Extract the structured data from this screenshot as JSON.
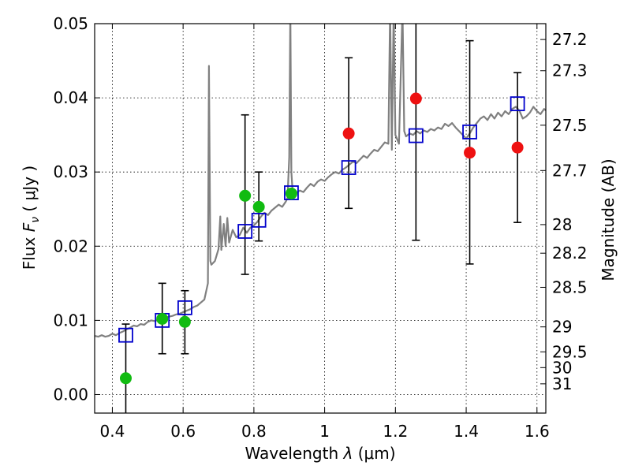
{
  "chart_data": {
    "type": "scatter",
    "xlabel_prefix": "Wavelength",
    "xlabel_symbol": "λ",
    "xlabel_unit": "(μm)",
    "ylabel_prefix": "Flux",
    "ylabel_symbol": "F",
    "ylabel_sub": "ν",
    "ylabel_unit": "( μJy )",
    "y2label": "Magnitude (AB)",
    "xlim": [
      0.35,
      1.625
    ],
    "ylim": [
      -0.0025,
      0.05
    ],
    "x_ticks": [
      {
        "value": 0.4,
        "label": "0.4"
      },
      {
        "value": 0.6,
        "label": "0.6"
      },
      {
        "value": 0.8,
        "label": "0.8"
      },
      {
        "value": 1.0,
        "label": "1"
      },
      {
        "value": 1.2,
        "label": "1.2"
      },
      {
        "value": 1.4,
        "label": "1.4"
      },
      {
        "value": 1.6,
        "label": "1.6"
      }
    ],
    "y_ticks": [
      {
        "value": 0.0,
        "label": "0.00"
      },
      {
        "value": 0.01,
        "label": "0.01"
      },
      {
        "value": 0.02,
        "label": "0.02"
      },
      {
        "value": 0.03,
        "label": "0.03"
      },
      {
        "value": 0.04,
        "label": "0.04"
      },
      {
        "value": 0.05,
        "label": "0.05"
      }
    ],
    "mag_ticks": [
      {
        "value": 27.2,
        "label": "27.2"
      },
      {
        "value": 27.3,
        "label": "27.3"
      },
      {
        "value": 27.5,
        "label": "27.5"
      },
      {
        "value": 27.7,
        "label": "27.7"
      },
      {
        "value": 28,
        "label": "28"
      },
      {
        "value": 28.2,
        "label": "28.2"
      },
      {
        "value": 28.5,
        "label": "28.5"
      },
      {
        "value": 29,
        "label": "29"
      },
      {
        "value": 29.5,
        "label": "29.5"
      },
      {
        "value": 30,
        "label": "30"
      },
      {
        "value": 31,
        "label": "31"
      }
    ],
    "grid": true,
    "colors": {
      "model": "#808080",
      "squares": "#0000cc",
      "green": "#11bb11",
      "red": "#ee1111",
      "errorbar": "#000000"
    },
    "model_spectrum": [
      [
        0.35,
        0.0079
      ],
      [
        0.36,
        0.0078
      ],
      [
        0.37,
        0.008
      ],
      [
        0.38,
        0.0078
      ],
      [
        0.39,
        0.0079
      ],
      [
        0.4,
        0.0082
      ],
      [
        0.41,
        0.008
      ],
      [
        0.42,
        0.0083
      ],
      [
        0.43,
        0.0085
      ],
      [
        0.44,
        0.0088
      ],
      [
        0.45,
        0.009
      ],
      [
        0.46,
        0.0093
      ],
      [
        0.47,
        0.0092
      ],
      [
        0.48,
        0.0095
      ],
      [
        0.49,
        0.0094
      ],
      [
        0.5,
        0.0098
      ],
      [
        0.51,
        0.01
      ],
      [
        0.52,
        0.0099
      ],
      [
        0.53,
        0.0101
      ],
      [
        0.54,
        0.0102
      ],
      [
        0.55,
        0.0104
      ],
      [
        0.56,
        0.0105
      ],
      [
        0.57,
        0.0106
      ],
      [
        0.58,
        0.0108
      ],
      [
        0.59,
        0.0109
      ],
      [
        0.6,
        0.0111
      ],
      [
        0.61,
        0.0113
      ],
      [
        0.62,
        0.0115
      ],
      [
        0.63,
        0.0118
      ],
      [
        0.64,
        0.012
      ],
      [
        0.65,
        0.0124
      ],
      [
        0.66,
        0.0128
      ],
      [
        0.67,
        0.015
      ],
      [
        0.673,
        0.0443
      ],
      [
        0.677,
        0.018
      ],
      [
        0.68,
        0.0175
      ],
      [
        0.69,
        0.018
      ],
      [
        0.7,
        0.0196
      ],
      [
        0.705,
        0.024
      ],
      [
        0.708,
        0.0195
      ],
      [
        0.715,
        0.023
      ],
      [
        0.72,
        0.02
      ],
      [
        0.725,
        0.0238
      ],
      [
        0.73,
        0.0205
      ],
      [
        0.74,
        0.0222
      ],
      [
        0.75,
        0.0212
      ],
      [
        0.76,
        0.0215
      ],
      [
        0.77,
        0.0225
      ],
      [
        0.78,
        0.0218
      ],
      [
        0.79,
        0.0225
      ],
      [
        0.8,
        0.0228
      ],
      [
        0.81,
        0.0233
      ],
      [
        0.82,
        0.024
      ],
      [
        0.83,
        0.0245
      ],
      [
        0.84,
        0.0242
      ],
      [
        0.85,
        0.0248
      ],
      [
        0.86,
        0.0252
      ],
      [
        0.87,
        0.0256
      ],
      [
        0.88,
        0.0253
      ],
      [
        0.89,
        0.026
      ],
      [
        0.895,
        0.0265
      ],
      [
        0.9,
        0.032
      ],
      [
        0.903,
        0.052
      ],
      [
        0.906,
        0.03
      ],
      [
        0.91,
        0.027
      ],
      [
        0.92,
        0.0272
      ],
      [
        0.93,
        0.0275
      ],
      [
        0.94,
        0.0273
      ],
      [
        0.95,
        0.0279
      ],
      [
        0.96,
        0.0284
      ],
      [
        0.97,
        0.0281
      ],
      [
        0.98,
        0.0287
      ],
      [
        0.99,
        0.029
      ],
      [
        1.0,
        0.0288
      ],
      [
        1.01,
        0.0293
      ],
      [
        1.02,
        0.0297
      ],
      [
        1.03,
        0.03
      ],
      [
        1.04,
        0.0298
      ],
      [
        1.05,
        0.0303
      ],
      [
        1.06,
        0.0306
      ],
      [
        1.07,
        0.031
      ],
      [
        1.08,
        0.0314
      ],
      [
        1.09,
        0.0312
      ],
      [
        1.1,
        0.0317
      ],
      [
        1.11,
        0.0322
      ],
      [
        1.12,
        0.0319
      ],
      [
        1.13,
        0.0325
      ],
      [
        1.14,
        0.033
      ],
      [
        1.15,
        0.0328
      ],
      [
        1.16,
        0.0334
      ],
      [
        1.17,
        0.034
      ],
      [
        1.18,
        0.0338
      ],
      [
        1.185,
        0.052
      ],
      [
        1.19,
        0.033
      ],
      [
        1.195,
        0.052
      ],
      [
        1.2,
        0.035
      ],
      [
        1.21,
        0.0338
      ],
      [
        1.22,
        0.052
      ],
      [
        1.225,
        0.0355
      ],
      [
        1.23,
        0.0348
      ],
      [
        1.24,
        0.0352
      ],
      [
        1.25,
        0.035
      ],
      [
        1.26,
        0.0355
      ],
      [
        1.27,
        0.0352
      ],
      [
        1.28,
        0.0356
      ],
      [
        1.29,
        0.0354
      ],
      [
        1.3,
        0.0358
      ],
      [
        1.31,
        0.0356
      ],
      [
        1.32,
        0.036
      ],
      [
        1.33,
        0.0358
      ],
      [
        1.34,
        0.0365
      ],
      [
        1.35,
        0.0362
      ],
      [
        1.36,
        0.0366
      ],
      [
        1.37,
        0.036
      ],
      [
        1.38,
        0.0355
      ],
      [
        1.39,
        0.035
      ],
      [
        1.4,
        0.0345
      ],
      [
        1.41,
        0.0352
      ],
      [
        1.42,
        0.036
      ],
      [
        1.43,
        0.0366
      ],
      [
        1.44,
        0.0372
      ],
      [
        1.45,
        0.0375
      ],
      [
        1.46,
        0.037
      ],
      [
        1.47,
        0.0378
      ],
      [
        1.48,
        0.0372
      ],
      [
        1.49,
        0.038
      ],
      [
        1.5,
        0.0375
      ],
      [
        1.51,
        0.0382
      ],
      [
        1.52,
        0.0378
      ],
      [
        1.53,
        0.0385
      ],
      [
        1.54,
        0.0388
      ],
      [
        1.55,
        0.0383
      ],
      [
        1.56,
        0.0372
      ],
      [
        1.57,
        0.0375
      ],
      [
        1.58,
        0.038
      ],
      [
        1.59,
        0.0388
      ],
      [
        1.6,
        0.0382
      ],
      [
        1.61,
        0.0378
      ],
      [
        1.62,
        0.0385
      ],
      [
        1.625,
        0.0383
      ]
    ],
    "errorbars": [
      {
        "x": 0.438,
        "lo": -0.003,
        "hi": 0.0095
      },
      {
        "x": 0.541,
        "lo": 0.0055,
        "hi": 0.015
      },
      {
        "x": 0.605,
        "lo": 0.0055,
        "hi": 0.014
      },
      {
        "x": 0.775,
        "lo": 0.0162,
        "hi": 0.0377
      },
      {
        "x": 0.814,
        "lo": 0.0207,
        "hi": 0.03
      },
      {
        "x": 1.068,
        "lo": 0.0251,
        "hi": 0.0454
      },
      {
        "x": 1.258,
        "lo": 0.0208,
        "hi": 0.051
      },
      {
        "x": 1.41,
        "lo": 0.0176,
        "hi": 0.0477
      },
      {
        "x": 1.545,
        "lo": 0.0232,
        "hi": 0.0434
      }
    ],
    "green_points": [
      {
        "x": 0.438,
        "y": 0.0022
      },
      {
        "x": 0.541,
        "y": 0.0102
      },
      {
        "x": 0.605,
        "y": 0.0098
      },
      {
        "x": 0.775,
        "y": 0.0268
      },
      {
        "x": 0.814,
        "y": 0.0253
      },
      {
        "x": 0.906,
        "y": 0.0271
      }
    ],
    "red_points": [
      {
        "x": 1.068,
        "y": 0.0352
      },
      {
        "x": 1.258,
        "y": 0.0399
      },
      {
        "x": 1.41,
        "y": 0.0326
      },
      {
        "x": 1.545,
        "y": 0.0333
      }
    ],
    "model_squares": [
      {
        "x": 0.438,
        "y": 0.008
      },
      {
        "x": 0.541,
        "y": 0.01
      },
      {
        "x": 0.605,
        "y": 0.0117
      },
      {
        "x": 0.775,
        "y": 0.022
      },
      {
        "x": 0.814,
        "y": 0.0235
      },
      {
        "x": 0.906,
        "y": 0.0272
      },
      {
        "x": 1.068,
        "y": 0.0306
      },
      {
        "x": 1.258,
        "y": 0.0349
      },
      {
        "x": 1.41,
        "y": 0.0354
      },
      {
        "x": 1.545,
        "y": 0.0392
      }
    ]
  }
}
